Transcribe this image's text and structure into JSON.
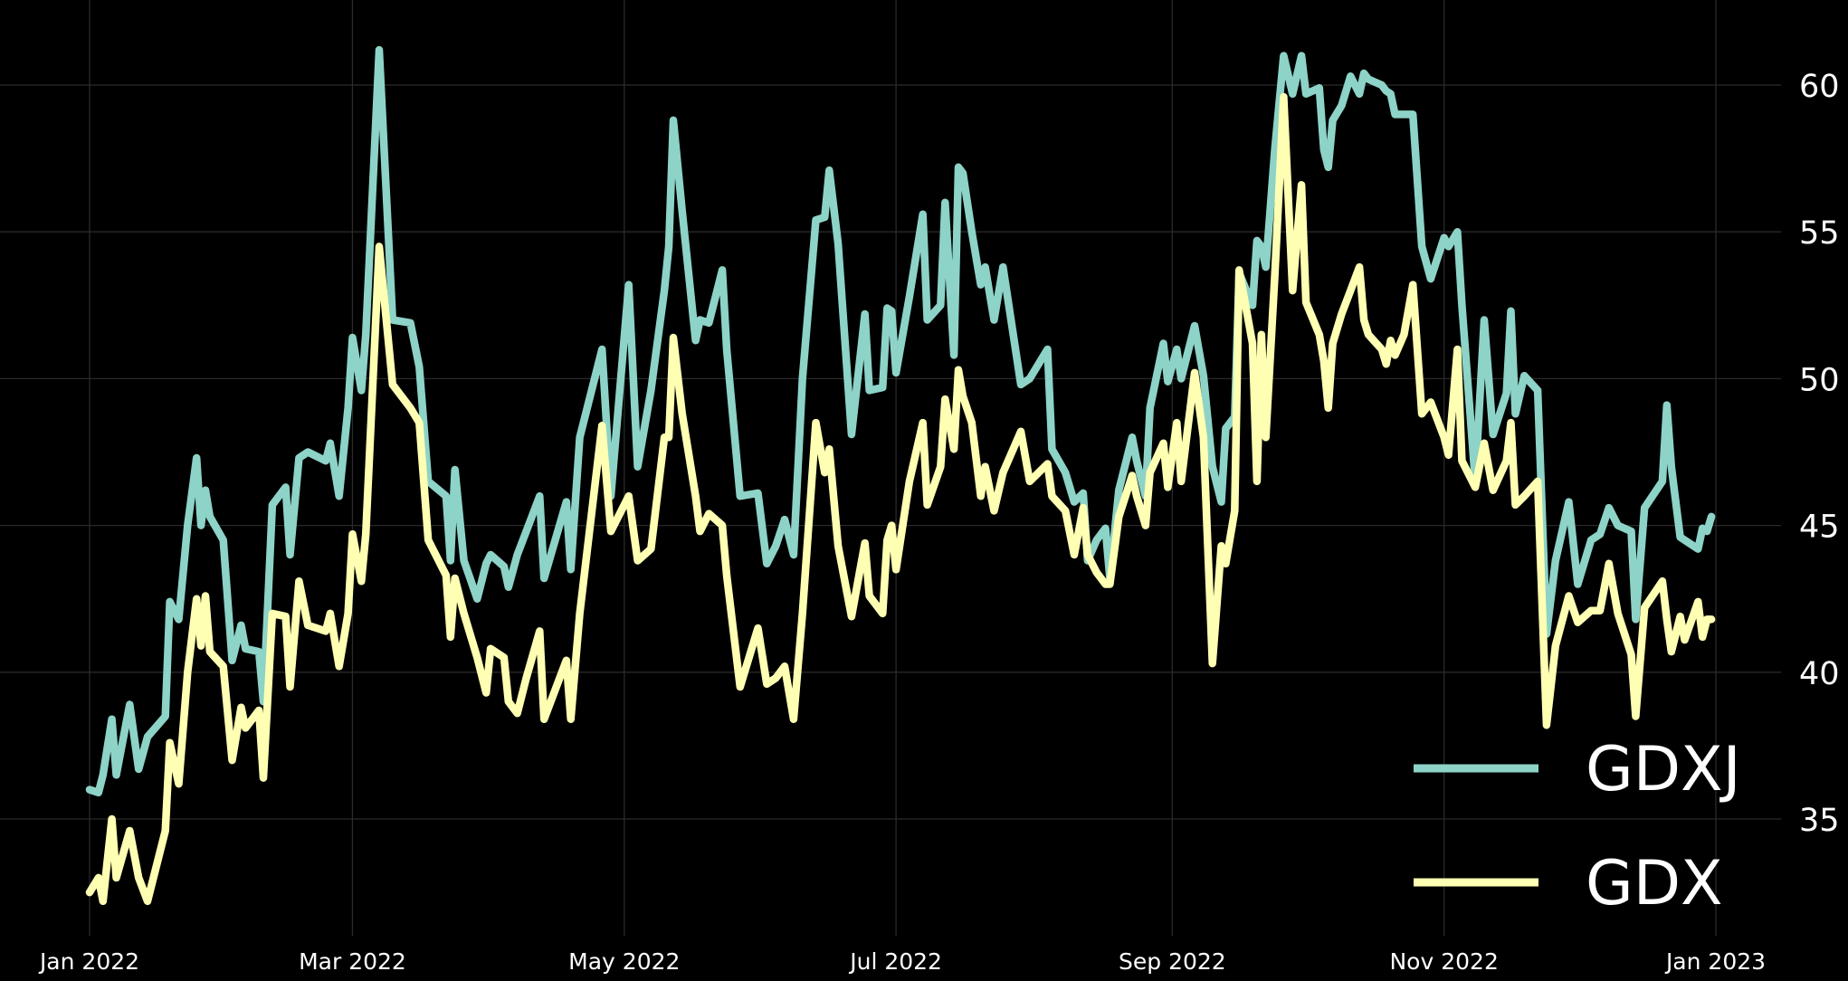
{
  "chart_data": {
    "type": "line",
    "title": "",
    "xlabel": "",
    "ylabel": "",
    "xlim": [
      "2021-12-10",
      "2023-01-20"
    ],
    "ylim": [
      31.2,
      62.9
    ],
    "y_axis_side": "right",
    "grid": true,
    "legend_placement": "bottom-right",
    "background": "#000000",
    "x_ticks": [
      {
        "date": "2022-01-01",
        "label": "Jan 2022"
      },
      {
        "date": "2022-03-01",
        "label": "Mar 2022"
      },
      {
        "date": "2022-05-01",
        "label": "May 2022"
      },
      {
        "date": "2022-07-01",
        "label": "Jul 2022"
      },
      {
        "date": "2022-09-01",
        "label": "Sep 2022"
      },
      {
        "date": "2022-11-01",
        "label": "Nov 2022"
      },
      {
        "date": "2023-01-01",
        "label": "Jan 2023"
      }
    ],
    "y_ticks": [
      {
        "value": 35,
        "label": "35"
      },
      {
        "value": 40,
        "label": "40"
      },
      {
        "value": 45,
        "label": "45"
      },
      {
        "value": 50,
        "label": "50"
      },
      {
        "value": 55,
        "label": "55"
      },
      {
        "value": 60,
        "label": "60"
      }
    ],
    "dates": [
      "2022-01-01",
      "2022-01-03",
      "2022-01-04",
      "2022-01-06",
      "2022-01-07",
      "2022-01-10",
      "2022-01-12",
      "2022-01-14",
      "2022-01-18",
      "2022-01-19",
      "2022-01-21",
      "2022-01-23",
      "2022-01-25",
      "2022-01-26",
      "2022-01-27",
      "2022-01-28",
      "2022-01-31",
      "2022-02-02",
      "2022-02-04",
      "2022-02-05",
      "2022-02-08",
      "2022-02-09",
      "2022-02-11",
      "2022-02-14",
      "2022-02-15",
      "2022-02-17",
      "2022-02-19",
      "2022-02-23",
      "2022-02-24",
      "2022-02-26",
      "2022-02-28",
      "2022-03-01",
      "2022-03-03",
      "2022-03-04",
      "2022-03-07",
      "2022-03-10",
      "2022-03-14",
      "2022-03-16",
      "2022-03-18",
      "2022-03-22",
      "2022-03-23",
      "2022-03-24",
      "2022-03-26",
      "2022-03-29",
      "2022-03-31",
      "2022-04-01",
      "2022-04-04",
      "2022-04-05",
      "2022-04-07",
      "2022-04-09",
      "2022-04-12",
      "2022-04-13",
      "2022-04-18",
      "2022-04-19",
      "2022-04-21",
      "2022-04-26",
      "2022-04-28",
      "2022-05-02",
      "2022-05-04",
      "2022-05-07",
      "2022-05-10",
      "2022-05-11",
      "2022-05-12",
      "2022-05-14",
      "2022-05-17",
      "2022-05-18",
      "2022-05-20",
      "2022-05-23",
      "2022-05-24",
      "2022-05-27",
      "2022-05-31",
      "2022-06-02",
      "2022-06-04",
      "2022-06-06",
      "2022-06-08",
      "2022-06-10",
      "2022-06-13",
      "2022-06-15",
      "2022-06-16",
      "2022-06-18",
      "2022-06-21",
      "2022-06-24",
      "2022-06-25",
      "2022-06-28",
      "2022-06-29",
      "2022-06-30",
      "2022-07-01",
      "2022-07-04",
      "2022-07-07",
      "2022-07-08",
      "2022-07-11",
      "2022-07-12",
      "2022-07-14",
      "2022-07-15",
      "2022-07-16",
      "2022-07-18",
      "2022-07-20",
      "2022-07-21",
      "2022-07-23",
      "2022-07-25",
      "2022-07-29",
      "2022-07-31",
      "2022-08-04",
      "2022-08-05",
      "2022-08-08",
      "2022-08-10",
      "2022-08-12",
      "2022-08-13",
      "2022-08-15",
      "2022-08-17",
      "2022-08-18",
      "2022-08-20",
      "2022-08-23",
      "2022-08-24",
      "2022-08-26",
      "2022-08-27",
      "2022-08-30",
      "2022-08-31",
      "2022-09-02",
      "2022-09-03",
      "2022-09-06",
      "2022-09-08",
      "2022-09-10",
      "2022-09-12",
      "2022-09-13",
      "2022-09-15",
      "2022-09-16",
      "2022-09-19",
      "2022-09-20",
      "2022-09-21",
      "2022-09-22",
      "2022-09-24",
      "2022-09-26",
      "2022-09-28",
      "2022-09-30",
      "2022-10-01",
      "2022-10-04",
      "2022-10-05",
      "2022-10-06",
      "2022-10-07",
      "2022-10-09",
      "2022-10-11",
      "2022-10-13",
      "2022-10-14",
      "2022-10-15",
      "2022-10-18",
      "2022-10-19",
      "2022-10-20",
      "2022-10-21",
      "2022-10-23",
      "2022-10-25",
      "2022-10-27",
      "2022-10-29",
      "2022-11-01",
      "2022-11-02",
      "2022-11-04",
      "2022-11-05",
      "2022-11-08",
      "2022-11-10",
      "2022-11-12",
      "2022-11-15",
      "2022-11-16",
      "2022-11-17",
      "2022-11-19",
      "2022-11-22",
      "2022-11-24",
      "2022-11-26",
      "2022-11-29",
      "2022-12-01",
      "2022-12-04",
      "2022-12-06",
      "2022-12-08",
      "2022-12-10",
      "2022-12-13",
      "2022-12-14",
      "2022-12-16",
      "2022-12-20",
      "2022-12-21",
      "2022-12-22",
      "2022-12-24",
      "2022-12-25",
      "2022-12-28",
      "2022-12-29",
      "2022-12-30",
      "2022-12-31"
    ],
    "series": [
      {
        "name": "GDXJ",
        "color": "#8dd3c7",
        "values": [
          36.0,
          35.9,
          36.5,
          38.4,
          36.5,
          38.9,
          36.7,
          37.8,
          38.5,
          42.4,
          41.8,
          45.0,
          47.3,
          45.0,
          46.2,
          45.3,
          44.5,
          40.4,
          41.6,
          40.8,
          40.7,
          39.0,
          45.7,
          46.3,
          44.0,
          47.3,
          47.5,
          47.2,
          47.8,
          46.0,
          49.0,
          51.4,
          49.6,
          51.5,
          61.2,
          52.0,
          51.9,
          50.4,
          46.5,
          46.0,
          43.8,
          46.9,
          43.8,
          42.5,
          43.7,
          44.0,
          43.6,
          42.9,
          44.0,
          44.8,
          46.0,
          43.2,
          45.8,
          43.5,
          48.0,
          51.0,
          46.0,
          53.2,
          47.0,
          49.6,
          53.0,
          54.5,
          58.8,
          55.7,
          51.3,
          52.0,
          51.9,
          53.7,
          51.0,
          46.0,
          46.1,
          43.7,
          44.3,
          45.2,
          44.0,
          50.0,
          55.4,
          55.5,
          57.1,
          54.6,
          48.1,
          52.2,
          49.6,
          49.7,
          52.4,
          52.3,
          50.2,
          52.8,
          55.6,
          52.0,
          52.5,
          56.0,
          50.8,
          57.2,
          57.0,
          55.0,
          53.2,
          53.8,
          52.0,
          53.8,
          49.8,
          50.0,
          51.0,
          47.6,
          46.8,
          45.8,
          46.1,
          43.8,
          44.5,
          44.9,
          43.2,
          46.2,
          48.0,
          47.2,
          46.0,
          49.0,
          51.2,
          49.9,
          51.0,
          50.0,
          51.8,
          50.1,
          47.0,
          45.8,
          48.3,
          48.7,
          53.6,
          52.5,
          54.7,
          54.5,
          53.8,
          57.8,
          61.0,
          59.7,
          61.0,
          59.7,
          59.9,
          57.8,
          57.2,
          58.8,
          59.3,
          60.3,
          59.7,
          60.4,
          60.2,
          60.0,
          59.8,
          59.7,
          59.0,
          59.0,
          59.0,
          54.5,
          53.4,
          54.8,
          54.5,
          55.0,
          52.5,
          46.5,
          52.0,
          48.1,
          49.5,
          52.3,
          48.8,
          50.1,
          49.6,
          41.3,
          43.8,
          45.8,
          43.0,
          44.5,
          44.7,
          45.6,
          45.0,
          44.8,
          41.8,
          45.6,
          46.5,
          49.1,
          47.0,
          44.6,
          44.5,
          44.2,
          44.9,
          44.8,
          45.3
        ]
      },
      {
        "name": "GDX",
        "color": "#ffffb3",
        "values": [
          32.5,
          33.0,
          32.2,
          35.0,
          33.0,
          34.6,
          33.0,
          32.2,
          34.6,
          37.6,
          36.2,
          40.0,
          42.5,
          40.9,
          42.6,
          40.7,
          40.2,
          37.0,
          38.8,
          38.1,
          38.7,
          36.4,
          42.0,
          41.9,
          39.5,
          43.1,
          41.6,
          41.4,
          42.0,
          40.2,
          42.0,
          44.7,
          43.1,
          44.7,
          54.5,
          49.8,
          49.0,
          48.5,
          44.5,
          43.3,
          41.2,
          43.2,
          42.0,
          40.5,
          39.3,
          40.8,
          40.5,
          39.0,
          38.6,
          39.8,
          41.4,
          38.4,
          40.4,
          38.4,
          42.0,
          48.4,
          44.8,
          46.0,
          43.8,
          44.2,
          48.0,
          48.0,
          51.4,
          48.8,
          46.0,
          44.8,
          45.4,
          45.0,
          43.3,
          39.5,
          41.5,
          39.6,
          39.8,
          40.2,
          38.4,
          42.0,
          48.5,
          46.8,
          47.6,
          44.3,
          41.9,
          44.4,
          42.6,
          42.0,
          44.5,
          45.0,
          43.5,
          46.5,
          48.5,
          45.7,
          47.0,
          49.3,
          47.6,
          50.3,
          49.4,
          48.5,
          46.0,
          47.0,
          45.5,
          46.8,
          48.2,
          46.5,
          47.1,
          46.0,
          45.5,
          44.0,
          45.6,
          44.0,
          43.4,
          43.0,
          43.0,
          45.3,
          46.7,
          46.0,
          45.0,
          46.8,
          47.8,
          46.3,
          48.5,
          46.5,
          50.2,
          48.0,
          40.3,
          44.3,
          43.7,
          45.5,
          53.7,
          51.2,
          46.5,
          51.5,
          48.0,
          53.5,
          59.6,
          53.0,
          56.6,
          52.6,
          51.5,
          50.6,
          49.0,
          51.2,
          52.2,
          53.0,
          53.8,
          52.0,
          51.5,
          51.0,
          50.5,
          51.3,
          50.8,
          51.5,
          53.2,
          48.8,
          49.2,
          48.0,
          47.4,
          51.0,
          47.2,
          46.3,
          47.8,
          46.2,
          47.2,
          48.5,
          45.7,
          46.0,
          46.5,
          38.2,
          40.9,
          42.6,
          41.7,
          42.1,
          42.1,
          43.7,
          42.0,
          40.6,
          38.5,
          42.2,
          43.1,
          41.8,
          40.7,
          41.9,
          41.1,
          42.4,
          41.2,
          41.8,
          41.8
        ]
      }
    ]
  }
}
